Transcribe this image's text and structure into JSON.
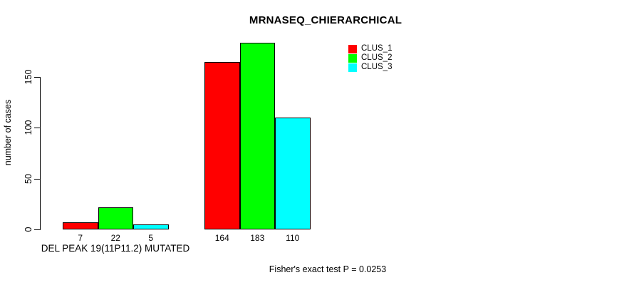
{
  "chart_data": {
    "type": "bar",
    "title": "MRNASEQ_CHIERARCHICAL",
    "ylabel": "number of cases",
    "xlabel": "",
    "categories": [
      "DEL PEAK 19(11P11.2) MUTATED",
      ""
    ],
    "series": [
      {
        "name": "CLUS_1",
        "color": "#ff0000",
        "values": [
          7,
          164
        ]
      },
      {
        "name": "CLUS_2",
        "color": "#00ff00",
        "values": [
          22,
          183
        ]
      },
      {
        "name": "CLUS_3",
        "color": "#00ffff",
        "values": [
          5,
          110
        ]
      }
    ],
    "yticks": [
      0,
      50,
      100,
      150
    ],
    "ylim": [
      0,
      190
    ],
    "grid": false,
    "bar_value_labels_shown": true,
    "legend_position": "top-right",
    "legend_entries": [
      "CLUS_1",
      "CLUS_2",
      "CLUS_3"
    ],
    "annotation": "Fisher's exact test P = 0.0253",
    "axis_color": "#000000",
    "bar_border_color": "#000000",
    "background_color": "#ffffff",
    "title_color": "#000000"
  }
}
